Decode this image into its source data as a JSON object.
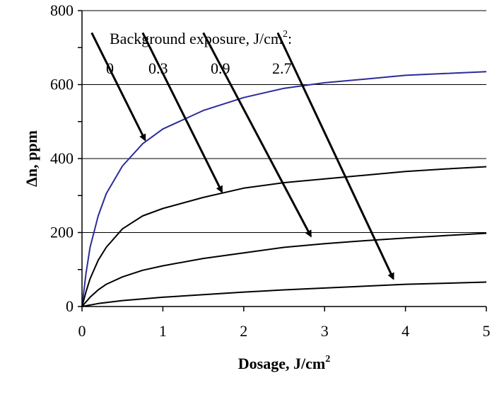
{
  "chart_data": {
    "type": "line",
    "xlabel": "Dosage, J/cm",
    "xlabel_sup": "2",
    "ylabel": "Δn, ppm",
    "xlim": [
      0,
      5
    ],
    "ylim": [
      0,
      800
    ],
    "x_ticks": [
      "0",
      "1",
      "2",
      "3",
      "4",
      "5"
    ],
    "y_ticks": [
      "0",
      "200",
      "400",
      "600",
      "800"
    ],
    "grid": "horizontal",
    "annotation": {
      "title": "Background exposure, J/cm",
      "title_sup": "2",
      "title_suffix": ":",
      "labels": [
        "0",
        "0.3",
        "0.9",
        "2.7"
      ]
    },
    "series": [
      {
        "label": "0",
        "color": "#2b2b9a",
        "x": [
          0,
          0.05,
          0.1,
          0.2,
          0.3,
          0.5,
          0.75,
          1,
          1.5,
          2,
          2.5,
          3,
          3.5,
          4,
          4.5,
          5
        ],
        "y": [
          0,
          90,
          160,
          245,
          305,
          380,
          440,
          480,
          530,
          565,
          590,
          605,
          615,
          625,
          630,
          635
        ]
      },
      {
        "label": "0.3",
        "color": "#000000",
        "x": [
          0,
          0.05,
          0.1,
          0.2,
          0.3,
          0.5,
          0.75,
          1,
          1.5,
          2,
          2.5,
          3,
          3.5,
          4,
          4.5,
          5
        ],
        "y": [
          0,
          40,
          75,
          125,
          160,
          210,
          245,
          265,
          295,
          320,
          335,
          345,
          355,
          365,
          372,
          378
        ]
      },
      {
        "label": "0.9",
        "color": "#000000",
        "x": [
          0,
          0.1,
          0.2,
          0.3,
          0.5,
          0.75,
          1,
          1.5,
          2,
          2.5,
          3,
          3.5,
          4,
          4.5,
          5
        ],
        "y": [
          0,
          25,
          45,
          60,
          80,
          98,
          110,
          130,
          145,
          160,
          170,
          178,
          185,
          192,
          198
        ]
      },
      {
        "label": "2.7",
        "color": "#000000",
        "x": [
          0,
          0.2,
          0.5,
          1,
          1.5,
          2,
          2.5,
          3,
          3.5,
          4,
          4.5,
          5
        ],
        "y": [
          0,
          8,
          16,
          25,
          32,
          39,
          45,
          50,
          55,
          60,
          63,
          66
        ]
      }
    ],
    "arrows": [
      {
        "label": "0",
        "from": [
          0.12,
          740
        ],
        "to": [
          0.78,
          450
        ]
      },
      {
        "label": "0.3",
        "from": [
          0.75,
          740
        ],
        "to": [
          1.73,
          310
        ]
      },
      {
        "label": "0.9",
        "from": [
          1.5,
          740
        ],
        "to": [
          2.83,
          190
        ]
      },
      {
        "label": "2.7",
        "from": [
          2.42,
          740
        ],
        "to": [
          3.85,
          75
        ]
      }
    ]
  }
}
